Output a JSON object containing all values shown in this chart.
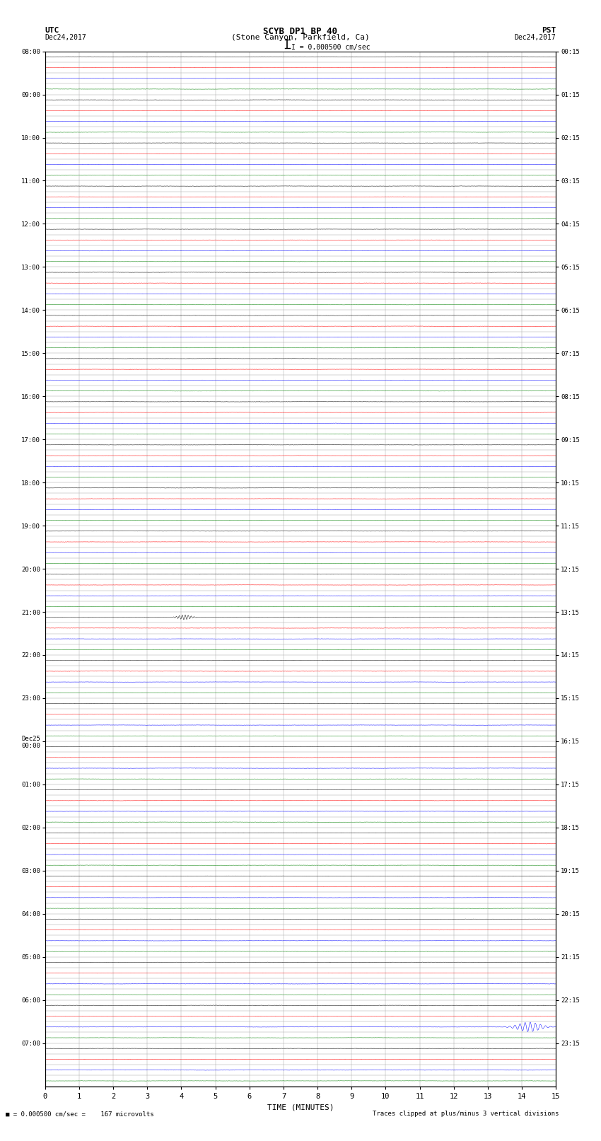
{
  "title_line1": "SCYB DP1 BP 40",
  "title_line2": "(Stone Canyon, Parkfield, Ca)",
  "scale_text": "I = 0.000500 cm/sec",
  "xlabel": "TIME (MINUTES)",
  "utc_hour_labels": [
    "08:00",
    "09:00",
    "10:00",
    "11:00",
    "12:00",
    "13:00",
    "14:00",
    "15:00",
    "16:00",
    "17:00",
    "18:00",
    "19:00",
    "20:00",
    "21:00",
    "22:00",
    "23:00",
    "Dec25\n00:00",
    "01:00",
    "02:00",
    "03:00",
    "04:00",
    "05:00",
    "06:00",
    "07:00"
  ],
  "pst_hour_labels": [
    "00:15",
    "01:15",
    "02:15",
    "03:15",
    "04:15",
    "05:15",
    "06:15",
    "07:15",
    "08:15",
    "09:15",
    "10:15",
    "11:15",
    "12:15",
    "13:15",
    "14:15",
    "15:15",
    "16:15",
    "17:15",
    "18:15",
    "19:15",
    "20:15",
    "21:15",
    "22:15",
    "23:15"
  ],
  "colors": [
    "black",
    "red",
    "blue",
    "green"
  ],
  "bg_color": "white",
  "n_rows": 96,
  "noise_amplitude": 0.025,
  "event1_row": 52,
  "event1_col": 4.1,
  "event1_color": "red",
  "event1_amplitude": 0.22,
  "event2_row": 90,
  "event2_col": 14.2,
  "event2_color": "blue",
  "event2_amplitude": 0.45,
  "grid_color": "#aaaaaa",
  "grid_linewidth": 0.4,
  "trace_linewidth": 0.35,
  "xmin": 0,
  "xmax": 15
}
